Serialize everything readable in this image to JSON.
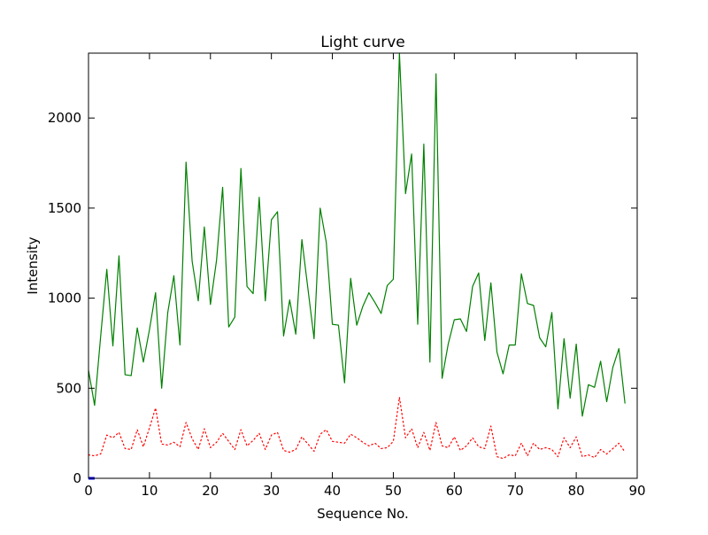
{
  "chart_data": {
    "type": "line",
    "title": "Light curve",
    "xlabel": "Sequence No.",
    "ylabel": "Intensity",
    "xlim": [
      0,
      90
    ],
    "ylim": [
      0,
      2360
    ],
    "xticks": [
      0,
      10,
      20,
      30,
      40,
      50,
      60,
      70,
      80,
      90
    ],
    "yticks": [
      0,
      500,
      1000,
      1500,
      2000
    ],
    "grid": false,
    "series": [
      {
        "color": "#008000",
        "style": "solid",
        "x": [
          0,
          1,
          2,
          3,
          4,
          5,
          6,
          7,
          8,
          9,
          10,
          11,
          12,
          13,
          14,
          15,
          16,
          17,
          18,
          19,
          20,
          21,
          22,
          23,
          24,
          25,
          26,
          27,
          28,
          29,
          30,
          31,
          32,
          33,
          34,
          35,
          36,
          37,
          38,
          39,
          40,
          41,
          42,
          43,
          44,
          45,
          46,
          47,
          48,
          49,
          50,
          51,
          52,
          53,
          54,
          55,
          56,
          57,
          58,
          59,
          60,
          61,
          62,
          63,
          64,
          65,
          66,
          67,
          68,
          69,
          70,
          71,
          72,
          73,
          74,
          75,
          76,
          77,
          78,
          79,
          80,
          81,
          82,
          83,
          84,
          85,
          86,
          87,
          88
        ],
        "values": [
          600,
          405,
          790,
          1160,
          735,
          1235,
          575,
          570,
          835,
          645,
          825,
          1030,
          500,
          920,
          1125,
          740,
          1755,
          1205,
          985,
          1395,
          965,
          1210,
          1615,
          840,
          895,
          1720,
          1065,
          1025,
          1560,
          985,
          1435,
          1480,
          790,
          990,
          800,
          1325,
          1050,
          775,
          1500,
          1310,
          855,
          850,
          530,
          1110,
          850,
          955,
          1030,
          975,
          915,
          1070,
          1105,
          2360,
          1580,
          1800,
          855,
          1855,
          645,
          2245,
          555,
          745,
          880,
          885,
          815,
          1065,
          1140,
          765,
          1085,
          700,
          580,
          740,
          740,
          1135,
          970,
          960,
          780,
          730,
          920,
          385,
          775,
          445,
          745,
          345,
          520,
          505,
          650,
          425,
          615,
          720,
          415
        ]
      },
      {
        "color": "#ff0000",
        "style": "dotted",
        "x": [
          0,
          1,
          2,
          3,
          4,
          5,
          6,
          7,
          8,
          9,
          10,
          11,
          12,
          13,
          14,
          15,
          16,
          17,
          18,
          19,
          20,
          21,
          22,
          23,
          24,
          25,
          26,
          27,
          28,
          29,
          30,
          31,
          32,
          33,
          34,
          35,
          36,
          37,
          38,
          39,
          40,
          41,
          42,
          43,
          44,
          45,
          46,
          47,
          48,
          49,
          50,
          51,
          52,
          53,
          54,
          55,
          56,
          57,
          58,
          59,
          60,
          61,
          62,
          63,
          64,
          65,
          66,
          67,
          68,
          69,
          70,
          71,
          72,
          73,
          74,
          75,
          76,
          77,
          78,
          79,
          80,
          81,
          82,
          83,
          84,
          85,
          86,
          87,
          88
        ],
        "values": [
          130,
          125,
          135,
          240,
          225,
          255,
          165,
          160,
          270,
          175,
          280,
          390,
          190,
          185,
          200,
          175,
          310,
          220,
          160,
          275,
          170,
          200,
          250,
          205,
          160,
          270,
          180,
          210,
          250,
          160,
          240,
          255,
          155,
          145,
          160,
          230,
          190,
          150,
          245,
          270,
          205,
          200,
          195,
          245,
          225,
          200,
          180,
          195,
          165,
          170,
          205,
          450,
          225,
          275,
          170,
          255,
          155,
          310,
          180,
          170,
          230,
          155,
          180,
          225,
          175,
          165,
          290,
          120,
          110,
          130,
          125,
          195,
          125,
          195,
          160,
          170,
          160,
          120,
          225,
          170,
          230,
          120,
          130,
          115,
          160,
          135,
          165,
          195,
          145
        ]
      },
      {
        "color": "#0000ff",
        "style": "solid",
        "x": [
          0,
          1
        ],
        "values": [
          0,
          0
        ]
      }
    ]
  }
}
